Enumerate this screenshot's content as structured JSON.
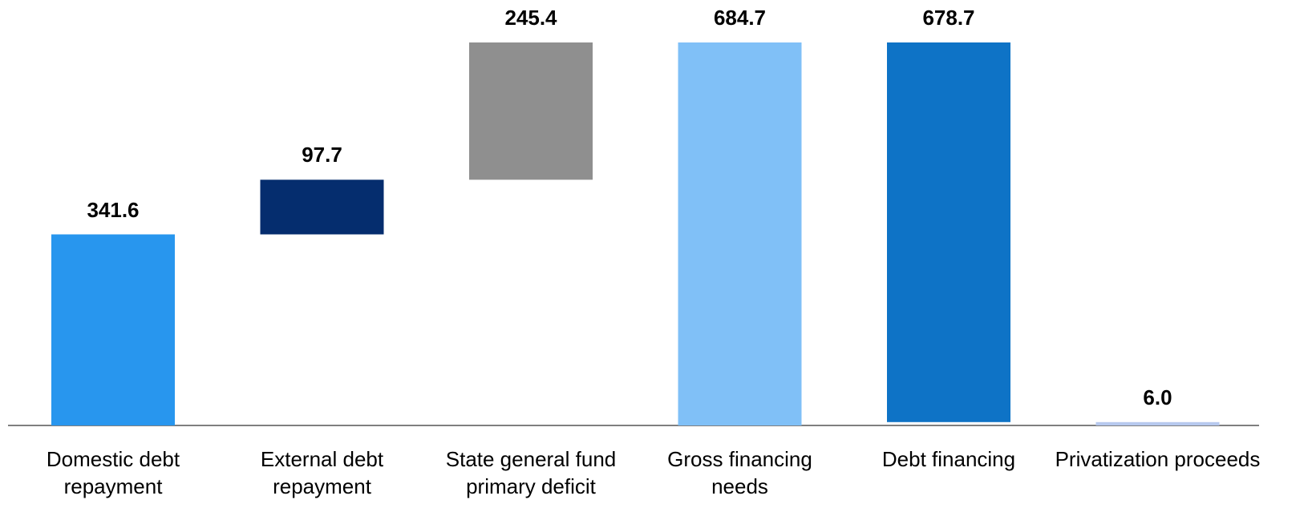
{
  "chart_data": {
    "type": "waterfall",
    "categories": [
      "Domestic debt repayment",
      "External debt repayment",
      "State general fund primary deficit",
      "Gross financing needs",
      "Debt financing",
      "Privatization proceeds"
    ],
    "values": [
      341.6,
      97.7,
      245.4,
      684.7,
      678.7,
      6.0
    ],
    "value_labels": [
      "341.6",
      "97.7",
      "245.4",
      "684.7",
      "678.7",
      "6.0"
    ],
    "colors": [
      "#2896ee",
      "#052d6e",
      "#8f8f8f",
      "#80c0f7",
      "#0e73c6",
      "#b7c9ee"
    ],
    "ylim": [
      0,
      684.7
    ]
  }
}
